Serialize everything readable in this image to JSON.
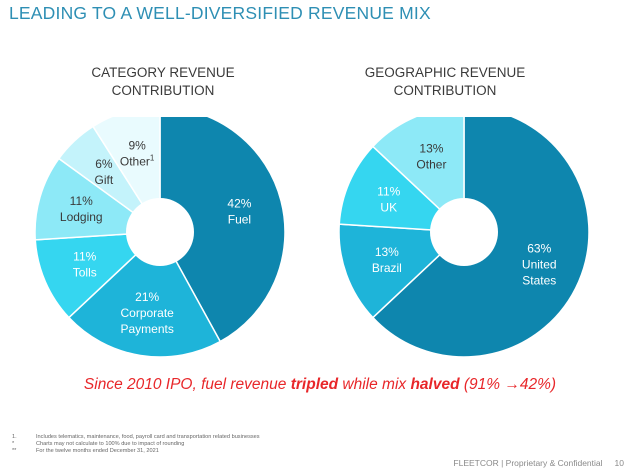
{
  "title": "LEADING TO A WELL-DIVERSIFIED REVENUE MIX",
  "colors": {
    "title": "#2e8fb4",
    "callout": "#e8272a",
    "slice_dark": "#0e86ae",
    "slice_mid": "#1eb4d9",
    "slice_bright": "#35d6f0",
    "slice_light": "#8de9f7",
    "slice_pale": "#c4f3fb",
    "slice_lightest": "#e9fbfe"
  },
  "chart_data": [
    {
      "type": "pie",
      "title_lines": [
        "CATEGORY REVENUE",
        "CONTRIBUTION"
      ],
      "donut": true,
      "slices": [
        {
          "pct": "42%",
          "name_lines": [
            "Fuel"
          ],
          "value": 42,
          "color": "#0e86ae",
          "text_color": "#ffffff"
        },
        {
          "pct": "21%",
          "name_lines": [
            "Corporate",
            "Payments"
          ],
          "value": 21,
          "color": "#1eb4d9",
          "text_color": "#ffffff"
        },
        {
          "pct": "11%",
          "name_lines": [
            "Tolls"
          ],
          "value": 11,
          "color": "#35d6f0",
          "text_color": "#ffffff"
        },
        {
          "pct": "11%",
          "name_lines": [
            "Lodging"
          ],
          "value": 11,
          "color": "#8de9f7",
          "text_color": "#3a3a3a"
        },
        {
          "pct": "6%",
          "name_lines": [
            "Gift"
          ],
          "value": 6,
          "color": "#c4f3fb",
          "text_color": "#3a3a3a"
        },
        {
          "pct": "9%",
          "name_lines": [
            "Other"
          ],
          "sup": "1",
          "value": 9,
          "color": "#e9fbfe",
          "text_color": "#3a3a3a"
        }
      ]
    },
    {
      "type": "pie",
      "title_lines": [
        "GEOGRAPHIC REVENUE",
        "CONTRIBUTION"
      ],
      "donut": true,
      "slices": [
        {
          "pct": "63%",
          "name_lines": [
            "United",
            "States"
          ],
          "value": 63,
          "color": "#0e86ae",
          "text_color": "#ffffff"
        },
        {
          "pct": "13%",
          "name_lines": [
            "Brazil"
          ],
          "value": 13,
          "color": "#1eb4d9",
          "text_color": "#ffffff"
        },
        {
          "pct": "11%",
          "name_lines": [
            "UK"
          ],
          "value": 11,
          "color": "#35d6f0",
          "text_color": "#ffffff"
        },
        {
          "pct": "13%",
          "name_lines": [
            "Other"
          ],
          "value": 13,
          "color": "#8de9f7",
          "text_color": "#3a3a3a"
        }
      ]
    }
  ],
  "callout": {
    "part1": "Since 2010 IPO, fuel revenue ",
    "bold1": "tripled",
    "part2": " while mix ",
    "bold2": "halved",
    "part3": " (91% ",
    "arrow": "→",
    "part4": "42%)"
  },
  "footnotes": [
    {
      "mark": "1.",
      "text": "Includes telematics, maintenance, food, payroll card and transportation related businesses"
    },
    {
      "mark": "*",
      "text": "Charts may not calculate to 100% due to impact of rounding"
    },
    {
      "mark": "**",
      "text": "For the twelve months ended December 31, 2021"
    }
  ],
  "footer": {
    "text": "FLEETCOR | Proprietary & Confidential",
    "page": "10"
  }
}
